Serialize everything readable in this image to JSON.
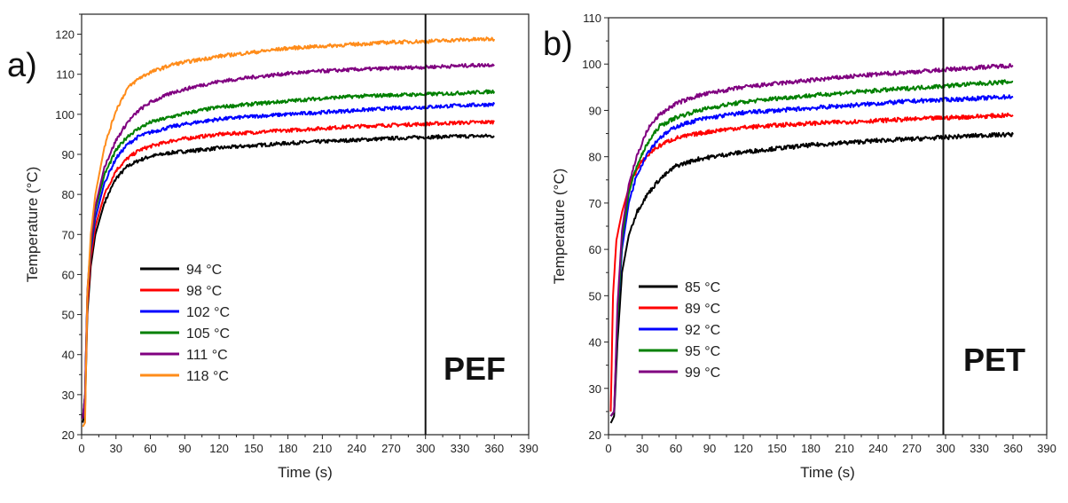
{
  "chart_data": [
    {
      "panel_label": "a)",
      "type": "line",
      "material": "PEF",
      "xlabel": "Time (s)",
      "ylabel": "Temperature (°C)",
      "xlim": [
        0,
        390
      ],
      "ylim": [
        20,
        125
      ],
      "xticks": [
        0,
        30,
        60,
        90,
        120,
        150,
        180,
        210,
        240,
        270,
        300,
        330,
        360,
        390
      ],
      "yticks": [
        20,
        30,
        40,
        50,
        60,
        70,
        80,
        90,
        100,
        110,
        120
      ],
      "vline_x": 300,
      "legend_position": "lower-left",
      "series": [
        {
          "name": "94 °C",
          "color": "#000000",
          "points": [
            [
              1,
              23
            ],
            [
              3,
              26
            ],
            [
              5,
              50
            ],
            [
              8,
              62
            ],
            [
              12,
              70
            ],
            [
              20,
              78
            ],
            [
              30,
              84
            ],
            [
              40,
              87
            ],
            [
              50,
              88.5
            ],
            [
              60,
              89.5
            ],
            [
              80,
              90.5
            ],
            [
              100,
              91
            ],
            [
              120,
              91.6
            ],
            [
              150,
              92.2
            ],
            [
              180,
              92.8
            ],
            [
              210,
              93.2
            ],
            [
              240,
              93.6
            ],
            [
              270,
              94
            ],
            [
              300,
              94.3
            ],
            [
              330,
              94.5
            ],
            [
              360,
              94.6
            ]
          ]
        },
        {
          "name": "98 °C",
          "color": "#ff0000",
          "points": [
            [
              1,
              24
            ],
            [
              3,
              28
            ],
            [
              5,
              52
            ],
            [
              8,
              64
            ],
            [
              12,
              72
            ],
            [
              20,
              80
            ],
            [
              30,
              86
            ],
            [
              40,
              89
            ],
            [
              50,
              91
            ],
            [
              60,
              92
            ],
            [
              80,
              93.5
            ],
            [
              100,
              94.3
            ],
            [
              120,
              95
            ],
            [
              150,
              95.5
            ],
            [
              180,
              96
            ],
            [
              210,
              96.5
            ],
            [
              240,
              97
            ],
            [
              270,
              97.3
            ],
            [
              300,
              97.6
            ],
            [
              330,
              97.9
            ],
            [
              360,
              98.1
            ]
          ]
        },
        {
          "name": "102 °C",
          "color": "#0000ff",
          "points": [
            [
              1,
              24
            ],
            [
              3,
              30
            ],
            [
              5,
              55
            ],
            [
              8,
              66
            ],
            [
              12,
              74
            ],
            [
              20,
              83
            ],
            [
              30,
              89
            ],
            [
              40,
              92.5
            ],
            [
              50,
              94.5
            ],
            [
              60,
              95.5
            ],
            [
              80,
              97
            ],
            [
              100,
              98
            ],
            [
              120,
              98.8
            ],
            [
              150,
              99.5
            ],
            [
              180,
              100
            ],
            [
              210,
              100.5
            ],
            [
              240,
              101
            ],
            [
              270,
              101.5
            ],
            [
              300,
              101.8
            ],
            [
              330,
              102.2
            ],
            [
              360,
              102.5
            ]
          ]
        },
        {
          "name": "105 °C",
          "color": "#008000",
          "points": [
            [
              1,
              24
            ],
            [
              3,
              30
            ],
            [
              5,
              55
            ],
            [
              8,
              67
            ],
            [
              12,
              76
            ],
            [
              20,
              85
            ],
            [
              30,
              91
            ],
            [
              40,
              94.5
            ],
            [
              50,
              96.5
            ],
            [
              60,
              98
            ],
            [
              80,
              99.5
            ],
            [
              100,
              100.8
            ],
            [
              120,
              101.8
            ],
            [
              150,
              102.6
            ],
            [
              180,
              103.3
            ],
            [
              210,
              104
            ],
            [
              240,
              104.5
            ],
            [
              270,
              104.8
            ],
            [
              300,
              105
            ],
            [
              330,
              105.3
            ],
            [
              360,
              105.7
            ]
          ]
        },
        {
          "name": "111 °C",
          "color": "#800080",
          "points": [
            [
              1,
              24
            ],
            [
              3,
              30
            ],
            [
              5,
              56
            ],
            [
              8,
              68
            ],
            [
              12,
              77
            ],
            [
              20,
              87
            ],
            [
              30,
              93.5
            ],
            [
              40,
              98
            ],
            [
              50,
              101
            ],
            [
              60,
              103
            ],
            [
              80,
              105.5
            ],
            [
              100,
              107
            ],
            [
              120,
              108.2
            ],
            [
              150,
              109.3
            ],
            [
              180,
              110.2
            ],
            [
              210,
              110.8
            ],
            [
              240,
              111.2
            ],
            [
              270,
              111.5
            ],
            [
              300,
              111.8
            ],
            [
              330,
              112.1
            ],
            [
              360,
              112.4
            ]
          ]
        },
        {
          "name": "118 °C",
          "color": "#ff8c1a",
          "points": [
            [
              1,
              22
            ],
            [
              3,
              23
            ],
            [
              5,
              55
            ],
            [
              8,
              70
            ],
            [
              12,
              80
            ],
            [
              20,
              92
            ],
            [
              30,
              101
            ],
            [
              40,
              106.5
            ],
            [
              50,
              109
            ],
            [
              60,
              110.5
            ],
            [
              80,
              112.5
            ],
            [
              100,
              113.5
            ],
            [
              120,
              114.5
            ],
            [
              150,
              115.5
            ],
            [
              180,
              116.5
            ],
            [
              210,
              117
            ],
            [
              240,
              117.5
            ],
            [
              270,
              118
            ],
            [
              300,
              118.2
            ],
            [
              330,
              118.6
            ],
            [
              360,
              118.8
            ]
          ]
        }
      ]
    },
    {
      "panel_label": "b)",
      "type": "line",
      "material": "PET",
      "xlabel": "Time (s)",
      "ylabel": "Temperature (°C)",
      "xlim": [
        0,
        390
      ],
      "ylim": [
        20,
        110
      ],
      "xticks": [
        0,
        30,
        60,
        90,
        120,
        150,
        180,
        210,
        240,
        270,
        300,
        330,
        360,
        390
      ],
      "yticks": [
        20,
        30,
        40,
        50,
        60,
        70,
        80,
        90,
        100,
        110
      ],
      "vline_x": 298,
      "legend_position": "lower-left",
      "series": [
        {
          "name": "85 °C",
          "color": "#000000",
          "points": [
            [
              2,
              22.5
            ],
            [
              5,
              24
            ],
            [
              8,
              40
            ],
            [
              12,
              55
            ],
            [
              18,
              63
            ],
            [
              25,
              68
            ],
            [
              35,
              72
            ],
            [
              45,
              75
            ],
            [
              60,
              78
            ],
            [
              80,
              79.5
            ],
            [
              100,
              80.3
            ],
            [
              120,
              81
            ],
            [
              150,
              81.8
            ],
            [
              180,
              82.5
            ],
            [
              210,
              83
            ],
            [
              240,
              83.5
            ],
            [
              270,
              83.8
            ],
            [
              300,
              84.2
            ],
            [
              330,
              84.6
            ],
            [
              360,
              84.8
            ]
          ]
        },
        {
          "name": "89 °C",
          "color": "#ff0000",
          "points": [
            [
              2,
              25
            ],
            [
              4,
              50
            ],
            [
              7,
              62
            ],
            [
              12,
              68
            ],
            [
              20,
              75
            ],
            [
              30,
              79
            ],
            [
              40,
              81.5
            ],
            [
              50,
              83
            ],
            [
              60,
              84
            ],
            [
              80,
              85
            ],
            [
              100,
              85.8
            ],
            [
              120,
              86.3
            ],
            [
              150,
              86.8
            ],
            [
              180,
              87.2
            ],
            [
              210,
              87.5
            ],
            [
              240,
              87.8
            ],
            [
              270,
              88.1
            ],
            [
              300,
              88.4
            ],
            [
              330,
              88.7
            ],
            [
              360,
              89
            ]
          ]
        },
        {
          "name": "92 °C",
          "color": "#0000ff",
          "points": [
            [
              2,
              24
            ],
            [
              5,
              25
            ],
            [
              8,
              45
            ],
            [
              12,
              60
            ],
            [
              18,
              70
            ],
            [
              25,
              76
            ],
            [
              35,
              81
            ],
            [
              45,
              84
            ],
            [
              60,
              86.5
            ],
            [
              80,
              88
            ],
            [
              100,
              88.8
            ],
            [
              120,
              89.5
            ],
            [
              150,
              90
            ],
            [
              180,
              90.5
            ],
            [
              210,
              91
            ],
            [
              240,
              91.5
            ],
            [
              270,
              92
            ],
            [
              300,
              92.3
            ],
            [
              330,
              92.6
            ],
            [
              360,
              93
            ]
          ]
        },
        {
          "name": "95 °C",
          "color": "#008000",
          "points": [
            [
              2,
              24
            ],
            [
              5,
              25
            ],
            [
              8,
              45
            ],
            [
              12,
              62
            ],
            [
              18,
              72
            ],
            [
              25,
              78
            ],
            [
              35,
              83
            ],
            [
              45,
              86.5
            ],
            [
              60,
              88.5
            ],
            [
              80,
              90
            ],
            [
              100,
              91
            ],
            [
              120,
              91.8
            ],
            [
              150,
              92.6
            ],
            [
              180,
              93.2
            ],
            [
              210,
              93.8
            ],
            [
              240,
              94.3
            ],
            [
              270,
              94.8
            ],
            [
              300,
              95.3
            ],
            [
              330,
              95.8
            ],
            [
              360,
              96.2
            ]
          ]
        },
        {
          "name": "99 °C",
          "color": "#800080",
          "points": [
            [
              2,
              24
            ],
            [
              5,
              25
            ],
            [
              8,
              48
            ],
            [
              12,
              64
            ],
            [
              18,
              74
            ],
            [
              25,
              80
            ],
            [
              35,
              86
            ],
            [
              45,
              89
            ],
            [
              60,
              91.5
            ],
            [
              80,
              93.2
            ],
            [
              100,
              94.2
            ],
            [
              120,
              95
            ],
            [
              150,
              95.8
            ],
            [
              180,
              96.5
            ],
            [
              210,
              97.2
            ],
            [
              240,
              97.8
            ],
            [
              270,
              98.3
            ],
            [
              300,
              98.8
            ],
            [
              330,
              99.3
            ],
            [
              360,
              99.7
            ]
          ]
        }
      ]
    }
  ]
}
